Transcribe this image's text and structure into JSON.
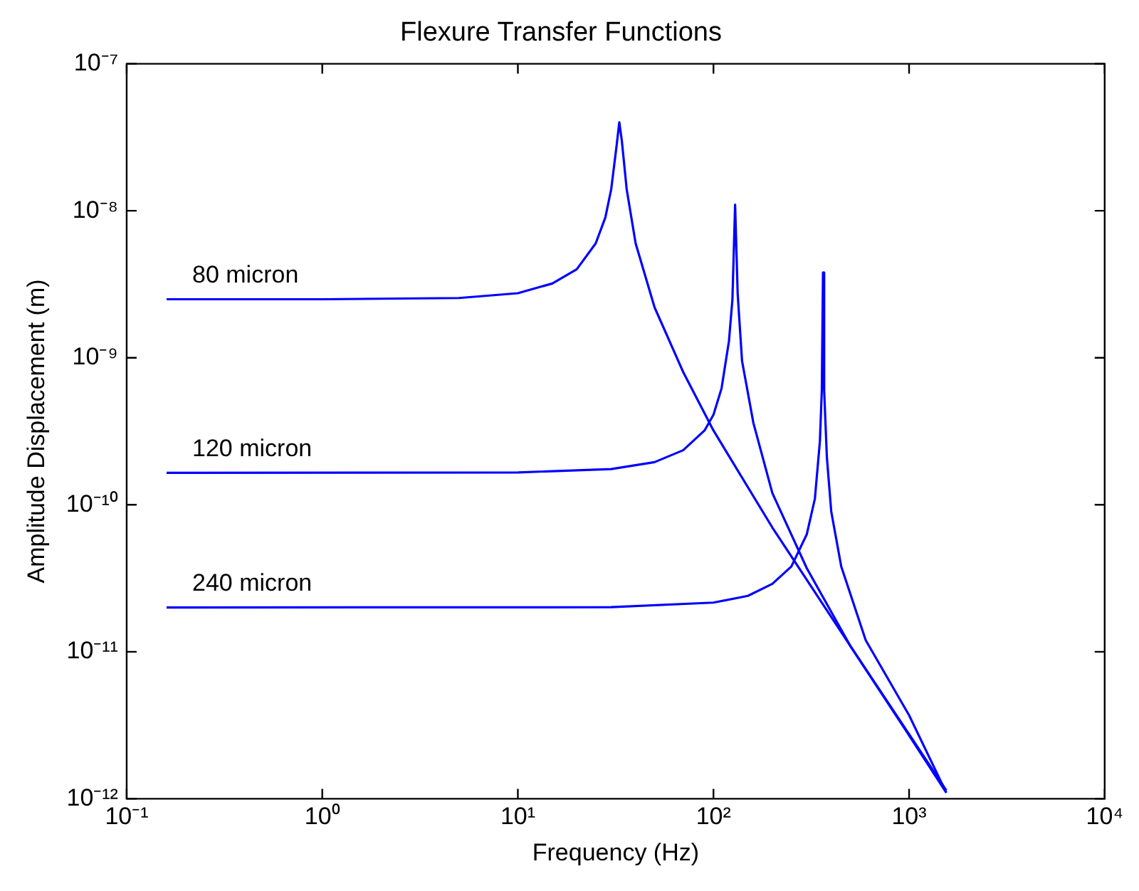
{
  "chart_data": {
    "type": "line",
    "title": "Flexure Transfer Functions",
    "xlabel": "Frequency (Hz)",
    "ylabel": "Amplitude Displacement (m)",
    "log": "xy",
    "grid": false,
    "legend": false,
    "marker": "none",
    "line_style": "solid",
    "xlim": [
      0.1,
      10000
    ],
    "ylim": [
      1e-12,
      1e-07
    ],
    "xticks": [
      {
        "value": 0.1,
        "label": "10⁻¹"
      },
      {
        "value": 1,
        "label": "10⁰"
      },
      {
        "value": 10,
        "label": "10¹"
      },
      {
        "value": 100,
        "label": "10²"
      },
      {
        "value": 1000,
        "label": "10³"
      },
      {
        "value": 10000,
        "label": "10⁴"
      }
    ],
    "yticks": [
      {
        "value": 1e-12,
        "label": "10⁻¹²"
      },
      {
        "value": 1e-11,
        "label": "10⁻¹¹"
      },
      {
        "value": 1e-10,
        "label": "10⁻¹⁰"
      },
      {
        "value": 1e-09,
        "label": "10⁻⁹"
      },
      {
        "value": 1e-08,
        "label": "10⁻⁸"
      },
      {
        "value": 1e-07,
        "label": "10⁻⁷"
      }
    ],
    "series": [
      {
        "name": "80 micron",
        "color": "#0000ff",
        "x": [
          0.16,
          1,
          5,
          10,
          15,
          20,
          25,
          28,
          30,
          32,
          33,
          34,
          36,
          40,
          50,
          70,
          100,
          200,
          500,
          1000,
          1550
        ],
        "values": [
          2.5e-09,
          2.5e-09,
          2.55e-09,
          2.75e-09,
          3.2e-09,
          4e-09,
          6e-09,
          9e-09,
          1.4e-08,
          2.8e-08,
          4e-08,
          3e-08,
          1.4e-08,
          6e-09,
          2.2e-09,
          8e-10,
          3.2e-10,
          7e-11,
          1.1e-11,
          2.7e-12,
          1.1e-12
        ]
      },
      {
        "name": "120 micron",
        "color": "#0000ff",
        "x": [
          0.16,
          10,
          30,
          50,
          70,
          90,
          100,
          110,
          120,
          125,
          129,
          133,
          140,
          160,
          200,
          300,
          500,
          1000,
          1550
        ],
        "values": [
          1.65e-10,
          1.66e-10,
          1.75e-10,
          1.95e-10,
          2.35e-10,
          3.2e-10,
          4.1e-10,
          6.2e-10,
          1.3e-09,
          2.5e-09,
          1.1e-08,
          2.7e-09,
          9.5e-10,
          3.6e-10,
          1.2e-10,
          3.7e-11,
          1.1e-11,
          2.75e-12,
          1.14e-12
        ]
      },
      {
        "name": "240 micron",
        "color": "#0000ff",
        "x": [
          0.16,
          30,
          100,
          150,
          200,
          250,
          300,
          330,
          350,
          358,
          363,
          368,
          380,
          400,
          450,
          600,
          1000,
          1550
        ],
        "values": [
          2e-11,
          2.01e-11,
          2.16e-11,
          2.4e-11,
          2.9e-11,
          3.8e-11,
          6.3e-11,
          1.1e-10,
          2.7e-10,
          6e-10,
          3.8e-09,
          6e-10,
          2.1e-10,
          9e-11,
          3.8e-11,
          1.2e-11,
          3.7e-12,
          1.1e-12
        ]
      }
    ]
  }
}
